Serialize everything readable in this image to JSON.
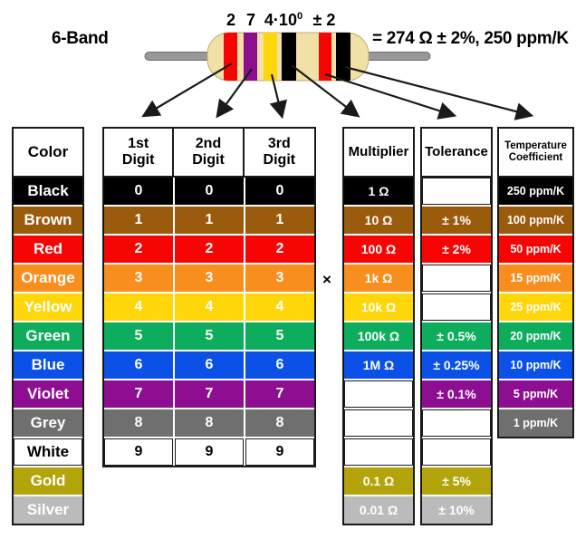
{
  "title": "6-Band",
  "annotations": {
    "a1": "2",
    "a2": "7",
    "a3": "4·10",
    "a3_sup": "0",
    "a4": "± 2"
  },
  "result": "= 274 Ω ± 2%, 250 ppm/K",
  "multiply_sign": "×",
  "palette": {
    "black": "#000000",
    "brown": "#9A5B0D",
    "red": "#F70505",
    "orange": "#F78E1E",
    "yellow": "#FFD60A",
    "green": "#0DAD5D",
    "blue": "#0B51E8",
    "violet": "#8D0E90",
    "grey": "#6F6F6F",
    "white": "#FFFFFF",
    "gold": "#B3A40C",
    "silver": "#BBBBBB",
    "body": "#F1E1A6",
    "body_edge": "#BFAB74",
    "lead": "#989898",
    "lead_edge": "#6E6E6E",
    "line": "#1A1A1A"
  },
  "resistor_bands": [
    "red",
    "violet",
    "yellow",
    "black",
    "red",
    "black"
  ],
  "headers": {
    "color": "Color",
    "digit1": "1st\nDigit",
    "digit2": "2nd\nDigit",
    "digit3": "3rd\nDigit",
    "multiplier": "Multiplier",
    "tolerance": "Tolerance",
    "temperature": "Temperature\nCoefficient"
  },
  "rows": [
    {
      "color": "Black",
      "bg": "#000000",
      "fg": "#FFFFFF",
      "digit": "0",
      "multiplier": "1 Ω",
      "tolerance": "",
      "temperature": "250 ppm/K"
    },
    {
      "color": "Brown",
      "bg": "#9A5B0D",
      "fg": "#FFFFFF",
      "digit": "1",
      "multiplier": "10 Ω",
      "tolerance": "± 1%",
      "temperature": "100 ppm/K"
    },
    {
      "color": "Red",
      "bg": "#F70505",
      "fg": "#FFFFFF",
      "digit": "2",
      "multiplier": "100 Ω",
      "tolerance": "± 2%",
      "temperature": "50 ppm/K"
    },
    {
      "color": "Orange",
      "bg": "#F78E1E",
      "fg": "#FFFFFF",
      "digit": "3",
      "multiplier": "1k Ω",
      "tolerance": "",
      "temperature": "15 ppm/K"
    },
    {
      "color": "Yellow",
      "bg": "#FFD60A",
      "fg": "#FFFFFF",
      "digit": "4",
      "multiplier": "10k Ω",
      "tolerance": "",
      "temperature": "25 ppm/K"
    },
    {
      "color": "Green",
      "bg": "#0DAD5D",
      "fg": "#FFFFFF",
      "digit": "5",
      "multiplier": "100k Ω",
      "tolerance": "± 0.5%",
      "temperature": "20 ppm/K"
    },
    {
      "color": "Blue",
      "bg": "#0B51E8",
      "fg": "#FFFFFF",
      "digit": "6",
      "multiplier": "1M Ω",
      "tolerance": "± 0.25%",
      "temperature": "10 ppm/K"
    },
    {
      "color": "Violet",
      "bg": "#8D0E90",
      "fg": "#FFFFFF",
      "digit": "7",
      "multiplier": "",
      "tolerance": "± 0.1%",
      "temperature": "5 ppm/K"
    },
    {
      "color": "Grey",
      "bg": "#6F6F6F",
      "fg": "#FFFFFF",
      "digit": "8",
      "multiplier": "",
      "tolerance": "",
      "temperature": "1 ppm/K"
    },
    {
      "color": "White",
      "bg": "#FFFFFF",
      "fg": "#000000",
      "digit": "9",
      "multiplier": "",
      "tolerance": "",
      "temperature": null
    },
    {
      "color": "Gold",
      "bg": "#B3A40C",
      "fg": "#FFFFFF",
      "digit": null,
      "multiplier": "0.1 Ω",
      "tolerance": "± 5%",
      "temperature": null
    },
    {
      "color": "Silver",
      "bg": "#BBBBBB",
      "fg": "#FFFFFF",
      "digit": null,
      "multiplier": "0.01 Ω",
      "tolerance": "± 10%",
      "temperature": null
    }
  ]
}
